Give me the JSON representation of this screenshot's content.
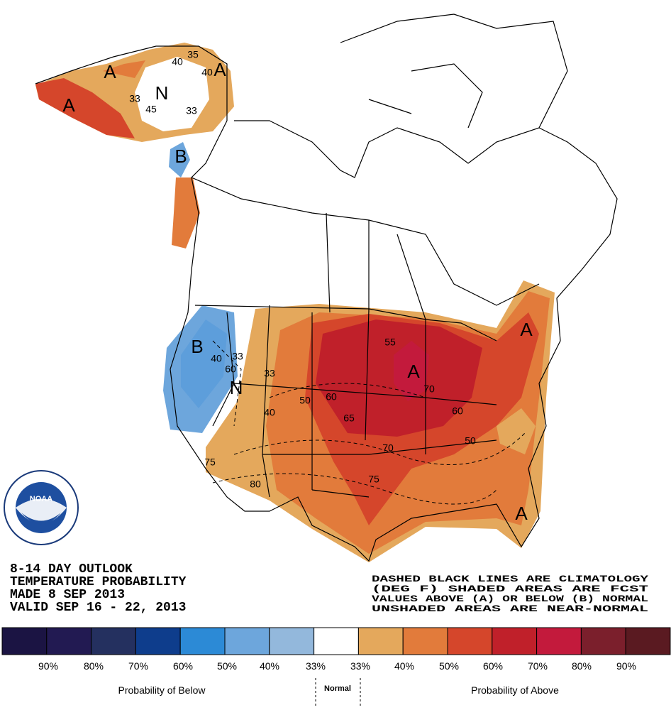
{
  "title_lines": [
    "8-14 DAY OUTLOOK",
    "TEMPERATURE PROBABILITY",
    "MADE  8 SEP 2013",
    "VALID  SEP 16 - 22, 2013"
  ],
  "note_lines": [
    "DASHED BLACK LINES ARE CLIMATOLOGY",
    "(DEG F) SHADED AREAS ARE FCST",
    "VALUES ABOVE (A) OR BELOW (B) NORMAL",
    "UNSHADED AREAS ARE NEAR-NORMAL"
  ],
  "map_labels": [
    "A",
    "A",
    "A",
    "N",
    "B",
    "B",
    "N",
    "A",
    "A",
    "A"
  ],
  "contour_labels": [
    "35",
    "40",
    "40",
    "33",
    "45",
    "33",
    "40",
    "33",
    "60",
    "33",
    "40",
    "50",
    "60",
    "65",
    "70",
    "60",
    "70",
    "50",
    "75",
    "75",
    "80",
    "55"
  ],
  "legend": {
    "colors": [
      "#1b1443",
      "#221a52",
      "#24305f",
      "#0e3d8c",
      "#2c8ad6",
      "#6da6dc",
      "#93b8dc",
      "#ffffff",
      "#e4a85c",
      "#e27b3b",
      "#d5462b",
      "#c0202a",
      "#c31a3c",
      "#7b1f2c",
      "#5a1a21"
    ],
    "labels": [
      "90%",
      "80%",
      "70%",
      "60%",
      "50%",
      "40%",
      "33%",
      "33%",
      "40%",
      "50%",
      "60%",
      "70%",
      "80%",
      "90%"
    ],
    "below": "Probability of Below",
    "normal": "Normal",
    "above": "Probability of Above"
  }
}
